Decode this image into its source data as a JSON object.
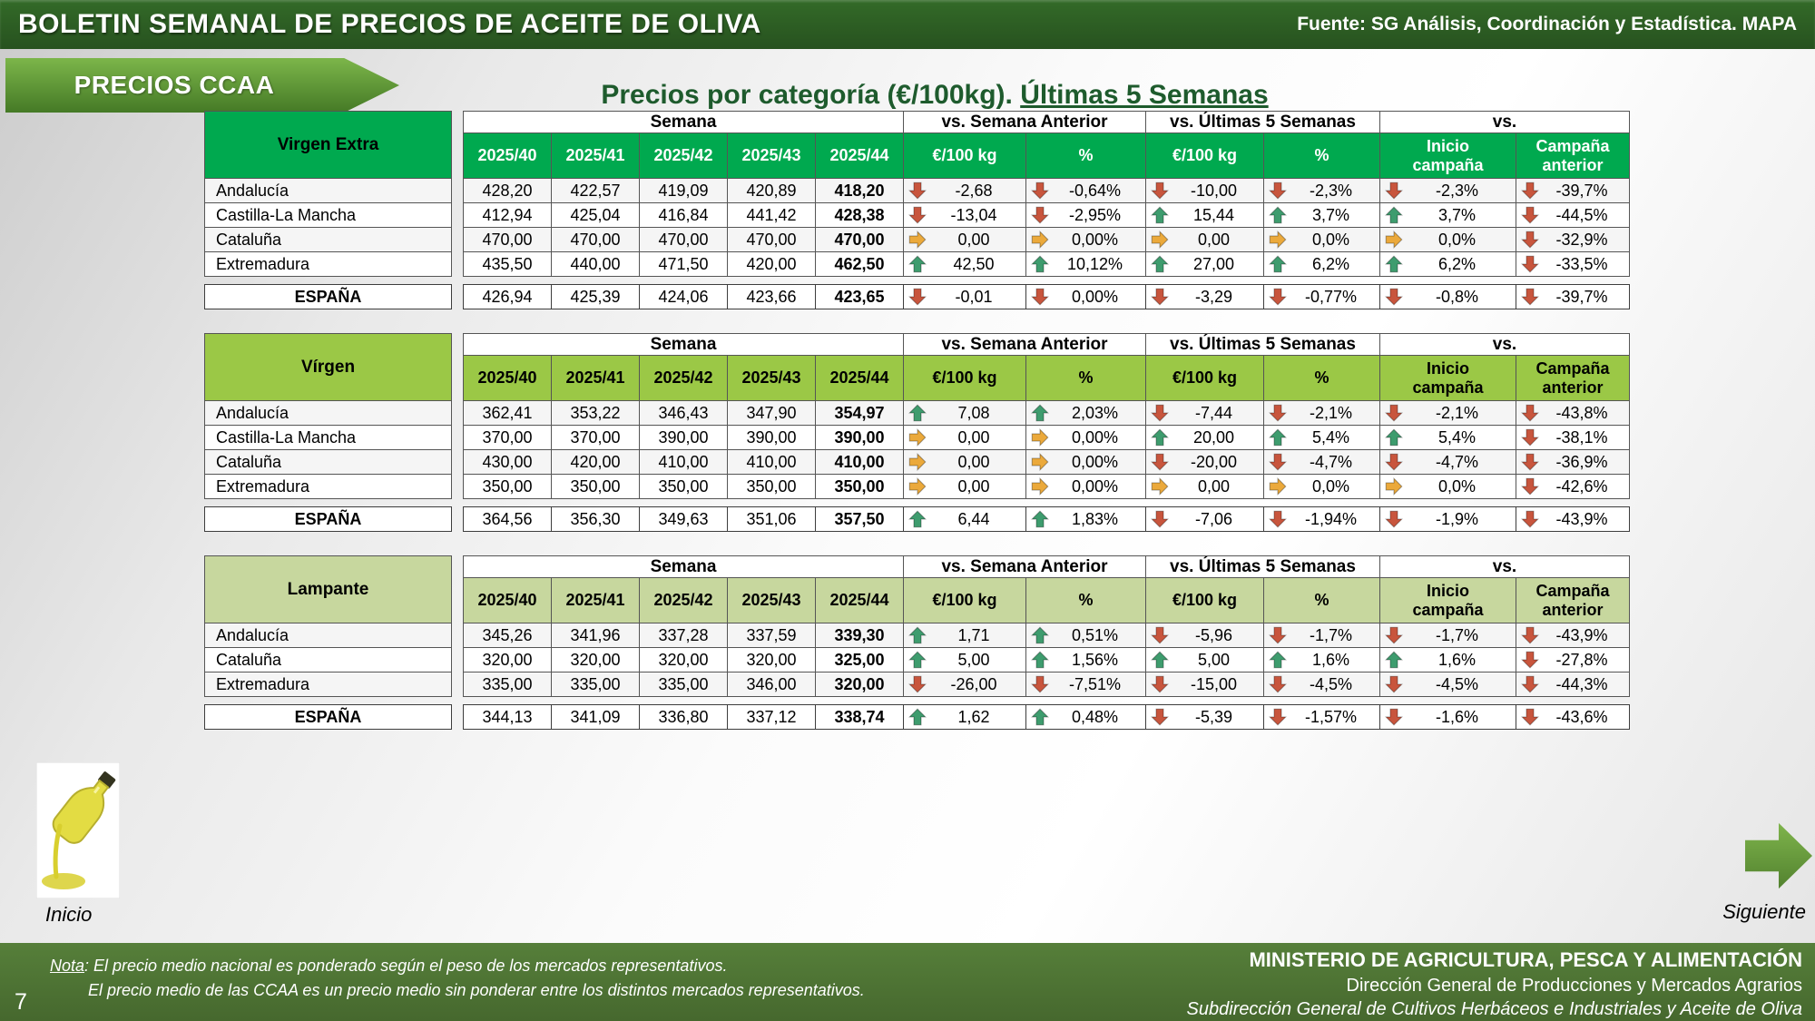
{
  "theme": {
    "topbar_green": "#336A28",
    "footer_green": "#46682E",
    "nav_green": "#4E7D2C",
    "title_green": "#1E5B2D"
  },
  "topbar": {
    "title": "BOLETIN SEMANAL DE PRECIOS DE ACEITE DE OLIVA",
    "source": "Fuente: SG Análisis, Coordinación y Estadística. MAPA"
  },
  "badge_label": "PRECIOS CCAA",
  "page_title": {
    "main": "Precios por categoría (€/100kg). ",
    "underlined": "Últimas 5 Semanas"
  },
  "columns": {
    "semana": "Semana",
    "vs_semana_anterior": "vs. Semana Anterior",
    "vs_ultimas_5_semanas": "vs. Últimas 5 Semanas",
    "vs": "vs.",
    "weeks": [
      "2025/40",
      "2025/41",
      "2025/42",
      "2025/43",
      "2025/44"
    ],
    "eur_per_100kg": "€/100 kg",
    "percent": "%",
    "inicio_campana": "Inicio\ncampaña",
    "campana_anterior": "Campaña\nanterior"
  },
  "arrow_colors": {
    "up": "#3E9C6E",
    "down": "#C8553D",
    "right": "#EBA93B"
  },
  "tables": [
    {
      "category": "Virgen Extra",
      "colors": {
        "header_bg": "#00A94F",
        "header_text": "#FFFFFF",
        "label_bg": "#00A94F",
        "label_text": "#000000"
      },
      "rows": [
        {
          "region": "Andalucía",
          "weeks": [
            "428,20",
            "422,57",
            "419,09",
            "420,89",
            "418,20"
          ],
          "comparisons": [
            {
              "dir": "down",
              "value": "-2,68"
            },
            {
              "dir": "down",
              "value": "-0,64%"
            },
            {
              "dir": "down",
              "value": "-10,00"
            },
            {
              "dir": "down",
              "value": "-2,3%"
            },
            {
              "dir": "down",
              "value": "-2,3%"
            },
            {
              "dir": "down",
              "value": "-39,7%"
            }
          ]
        },
        {
          "region": "Castilla-La Mancha",
          "weeks": [
            "412,94",
            "425,04",
            "416,84",
            "441,42",
            "428,38"
          ],
          "comparisons": [
            {
              "dir": "down",
              "value": "-13,04"
            },
            {
              "dir": "down",
              "value": "-2,95%"
            },
            {
              "dir": "up",
              "value": "15,44"
            },
            {
              "dir": "up",
              "value": "3,7%"
            },
            {
              "dir": "up",
              "value": "3,7%"
            },
            {
              "dir": "down",
              "value": "-44,5%"
            }
          ]
        },
        {
          "region": "Cataluña",
          "weeks": [
            "470,00",
            "470,00",
            "470,00",
            "470,00",
            "470,00"
          ],
          "comparisons": [
            {
              "dir": "right",
              "value": "0,00"
            },
            {
              "dir": "right",
              "value": "0,00%"
            },
            {
              "dir": "right",
              "value": "0,00"
            },
            {
              "dir": "right",
              "value": "0,0%"
            },
            {
              "dir": "right",
              "value": "0,0%"
            },
            {
              "dir": "down",
              "value": "-32,9%"
            }
          ]
        },
        {
          "region": "Extremadura",
          "weeks": [
            "435,50",
            "440,00",
            "471,50",
            "420,00",
            "462,50"
          ],
          "comparisons": [
            {
              "dir": "up",
              "value": "42,50"
            },
            {
              "dir": "up",
              "value": "10,12%"
            },
            {
              "dir": "up",
              "value": "27,00"
            },
            {
              "dir": "up",
              "value": "6,2%"
            },
            {
              "dir": "up",
              "value": "6,2%"
            },
            {
              "dir": "down",
              "value": "-33,5%"
            }
          ]
        }
      ],
      "total": {
        "region": "ESPAÑA",
        "weeks": [
          "426,94",
          "425,39",
          "424,06",
          "423,66",
          "423,65"
        ],
        "comparisons": [
          {
            "dir": "down",
            "value": "-0,01"
          },
          {
            "dir": "down",
            "value": "0,00%"
          },
          {
            "dir": "down",
            "value": "-3,29"
          },
          {
            "dir": "down",
            "value": "-0,77%"
          },
          {
            "dir": "down",
            "value": "-0,8%"
          },
          {
            "dir": "down",
            "value": "-39,7%"
          }
        ]
      }
    },
    {
      "category": "Vírgen",
      "colors": {
        "header_bg": "#9BC846",
        "header_text": "#000000",
        "label_bg": "#9BC846",
        "label_text": "#000000"
      },
      "rows": [
        {
          "region": "Andalucía",
          "weeks": [
            "362,41",
            "353,22",
            "346,43",
            "347,90",
            "354,97"
          ],
          "comparisons": [
            {
              "dir": "up",
              "value": "7,08"
            },
            {
              "dir": "up",
              "value": "2,03%"
            },
            {
              "dir": "down",
              "value": "-7,44"
            },
            {
              "dir": "down",
              "value": "-2,1%"
            },
            {
              "dir": "down",
              "value": "-2,1%"
            },
            {
              "dir": "down",
              "value": "-43,8%"
            }
          ]
        },
        {
          "region": "Castilla-La Mancha",
          "weeks": [
            "370,00",
            "370,00",
            "390,00",
            "390,00",
            "390,00"
          ],
          "comparisons": [
            {
              "dir": "right",
              "value": "0,00"
            },
            {
              "dir": "right",
              "value": "0,00%"
            },
            {
              "dir": "up",
              "value": "20,00"
            },
            {
              "dir": "up",
              "value": "5,4%"
            },
            {
              "dir": "up",
              "value": "5,4%"
            },
            {
              "dir": "down",
              "value": "-38,1%"
            }
          ]
        },
        {
          "region": "Cataluña",
          "weeks": [
            "430,00",
            "420,00",
            "410,00",
            "410,00",
            "410,00"
          ],
          "comparisons": [
            {
              "dir": "right",
              "value": "0,00"
            },
            {
              "dir": "right",
              "value": "0,00%"
            },
            {
              "dir": "down",
              "value": "-20,00"
            },
            {
              "dir": "down",
              "value": "-4,7%"
            },
            {
              "dir": "down",
              "value": "-4,7%"
            },
            {
              "dir": "down",
              "value": "-36,9%"
            }
          ]
        },
        {
          "region": "Extremadura",
          "weeks": [
            "350,00",
            "350,00",
            "350,00",
            "350,00",
            "350,00"
          ],
          "comparisons": [
            {
              "dir": "right",
              "value": "0,00"
            },
            {
              "dir": "right",
              "value": "0,00%"
            },
            {
              "dir": "right",
              "value": "0,00"
            },
            {
              "dir": "right",
              "value": "0,0%"
            },
            {
              "dir": "right",
              "value": "0,0%"
            },
            {
              "dir": "down",
              "value": "-42,6%"
            }
          ]
        }
      ],
      "total": {
        "region": "ESPAÑA",
        "weeks": [
          "364,56",
          "356,30",
          "349,63",
          "351,06",
          "357,50"
        ],
        "comparisons": [
          {
            "dir": "up",
            "value": "6,44"
          },
          {
            "dir": "up",
            "value": "1,83%"
          },
          {
            "dir": "down",
            "value": "-7,06"
          },
          {
            "dir": "down",
            "value": "-1,94%"
          },
          {
            "dir": "down",
            "value": "-1,9%"
          },
          {
            "dir": "down",
            "value": "-43,9%"
          }
        ]
      }
    },
    {
      "category": "Lampante",
      "colors": {
        "header_bg": "#C7D79E",
        "header_text": "#000000",
        "label_bg": "#C7D79E",
        "label_text": "#000000"
      },
      "rows": [
        {
          "region": "Andalucía",
          "weeks": [
            "345,26",
            "341,96",
            "337,28",
            "337,59",
            "339,30"
          ],
          "comparisons": [
            {
              "dir": "up",
              "value": "1,71"
            },
            {
              "dir": "up",
              "value": "0,51%"
            },
            {
              "dir": "down",
              "value": "-5,96"
            },
            {
              "dir": "down",
              "value": "-1,7%"
            },
            {
              "dir": "down",
              "value": "-1,7%"
            },
            {
              "dir": "down",
              "value": "-43,9%"
            }
          ]
        },
        {
          "region": "Cataluña",
          "weeks": [
            "320,00",
            "320,00",
            "320,00",
            "320,00",
            "325,00"
          ],
          "comparisons": [
            {
              "dir": "up",
              "value": "5,00"
            },
            {
              "dir": "up",
              "value": "1,56%"
            },
            {
              "dir": "up",
              "value": "5,00"
            },
            {
              "dir": "up",
              "value": "1,6%"
            },
            {
              "dir": "up",
              "value": "1,6%"
            },
            {
              "dir": "down",
              "value": "-27,8%"
            }
          ]
        },
        {
          "region": "Extremadura",
          "weeks": [
            "335,00",
            "335,00",
            "335,00",
            "346,00",
            "320,00"
          ],
          "comparisons": [
            {
              "dir": "down",
              "value": "-26,00"
            },
            {
              "dir": "down",
              "value": "-7,51%"
            },
            {
              "dir": "down",
              "value": "-15,00"
            },
            {
              "dir": "down",
              "value": "-4,5%"
            },
            {
              "dir": "down",
              "value": "-4,5%"
            },
            {
              "dir": "down",
              "value": "-44,3%"
            }
          ]
        }
      ],
      "total": {
        "region": "ESPAÑA",
        "weeks": [
          "344,13",
          "341,09",
          "336,80",
          "337,12",
          "338,74"
        ],
        "comparisons": [
          {
            "dir": "up",
            "value": "1,62"
          },
          {
            "dir": "up",
            "value": "0,48%"
          },
          {
            "dir": "down",
            "value": "-5,39"
          },
          {
            "dir": "down",
            "value": "-1,57%"
          },
          {
            "dir": "down",
            "value": "-1,6%"
          },
          {
            "dir": "down",
            "value": "-43,6%"
          }
        ]
      }
    }
  ],
  "nav": {
    "inicio": "Inicio",
    "siguiente": "Siguiente"
  },
  "footer": {
    "note_label": "Nota",
    "note_line1": ": El precio medio nacional es ponderado según el peso de los mercados representativos.",
    "note_line2": "El precio medio de las CCAA es un precio medio sin ponderar entre los distintos mercados representativos.",
    "ministry": "MINISTERIO DE AGRICULTURA, PESCA Y ALIMENTACIÓN",
    "direccion": "Dirección General de Producciones y Mercados Agrarios",
    "subdireccion": "Subdirección General de Cultivos Herbáceos e Industriales y Aceite de Oliva",
    "page_number": "7"
  }
}
